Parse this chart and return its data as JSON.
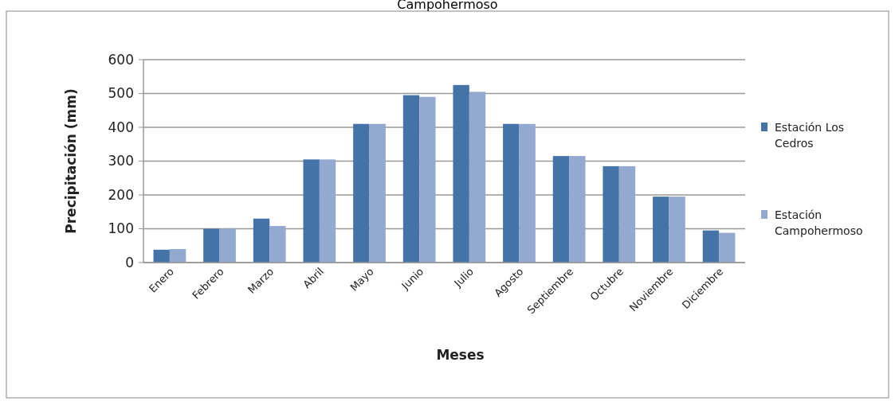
{
  "chart_data": {
    "type": "bar",
    "title": "Campohermoso",
    "xlabel": "Meses",
    "ylabel": "Precipitación (mm)",
    "categories": [
      "Enero",
      "Febrero",
      "Marzo",
      "Abril",
      "Mayo",
      "Junio",
      "Julio",
      "Agosto",
      "Septiembre",
      "Octubre",
      "Noviembre",
      "Diciembre"
    ],
    "series": [
      {
        "name": "Estación Los Cedros",
        "color": "#4572a7",
        "values": [
          38,
          100,
          130,
          305,
          410,
          495,
          525,
          410,
          315,
          285,
          195,
          95
        ]
      },
      {
        "name": "Estación Campohermoso",
        "color": "#94a9d0",
        "values": [
          40,
          100,
          108,
          305,
          410,
          490,
          505,
          410,
          315,
          285,
          195,
          88
        ]
      }
    ],
    "ylim": [
      0,
      600
    ],
    "yticks": [
      0,
      100,
      200,
      300,
      400,
      500,
      600
    ],
    "grid": "y",
    "legend": "right"
  }
}
